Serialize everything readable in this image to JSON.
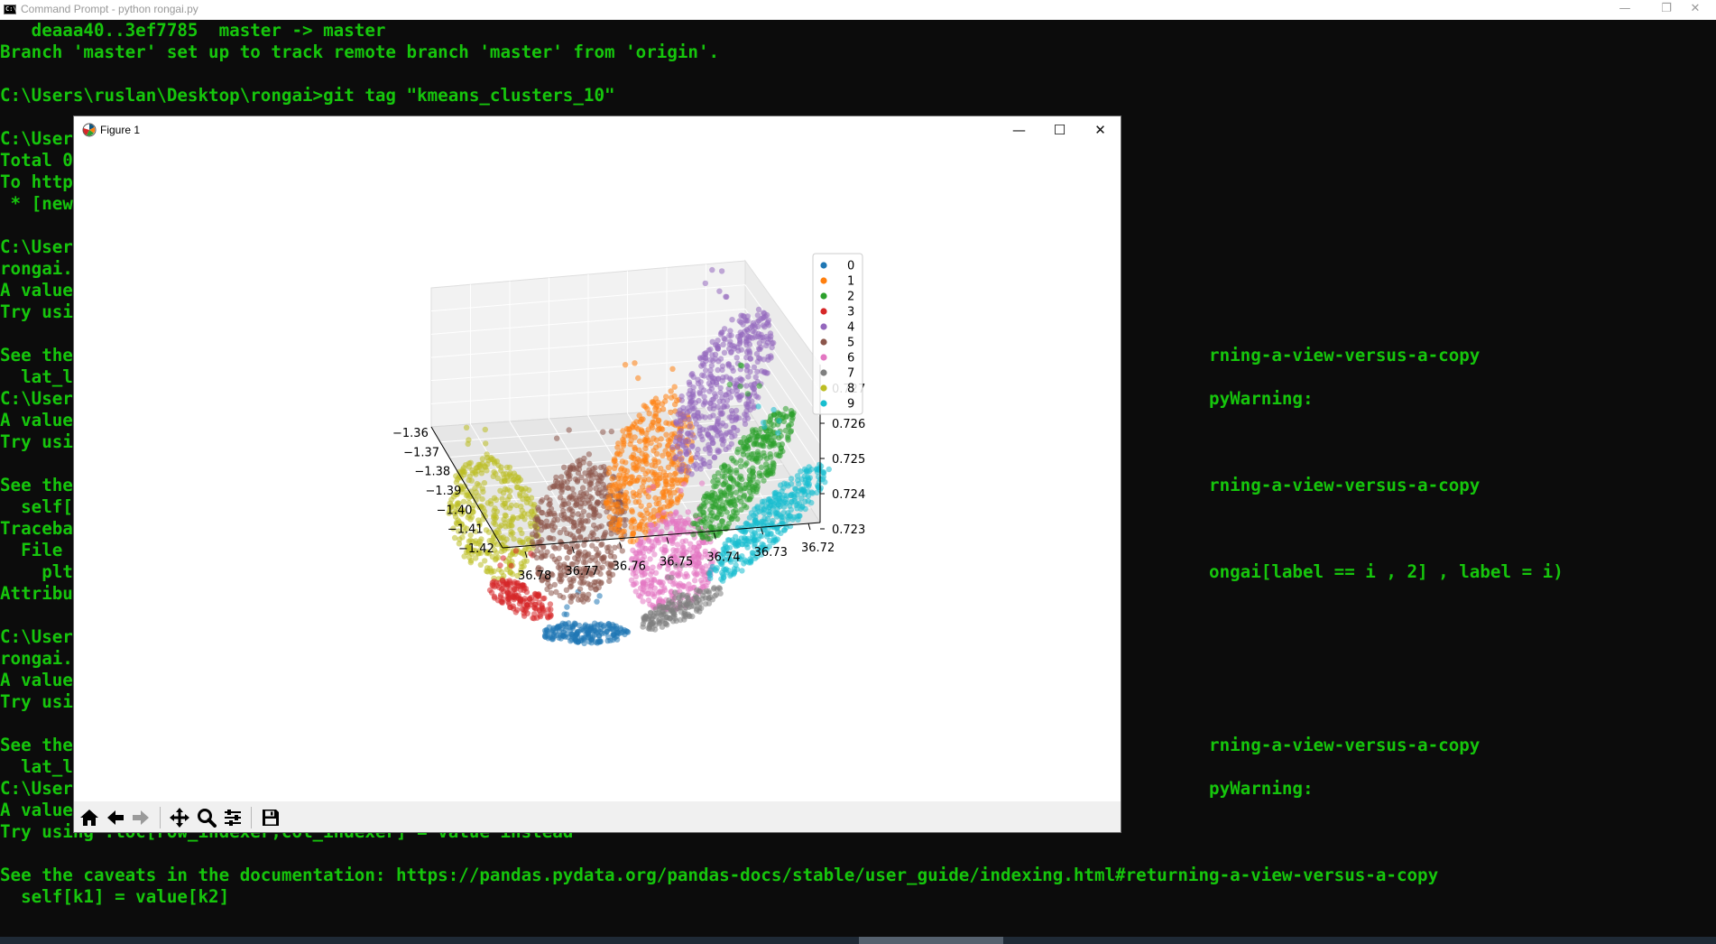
{
  "console_window": {
    "title": "Command Prompt - python  rongai.py",
    "icon": "cmd-icon",
    "controls": {
      "minimize": "—",
      "restore": "❐",
      "close": "✕"
    },
    "lines": [
      "   deaaa40..3ef7785  master -> master",
      "Branch 'master' set up to track remote branch 'master' from 'origin'.",
      "",
      "C:\\Users\\ruslan\\Desktop\\rongai>git tag \"kmeans_clusters_10\"",
      "",
      "C:\\Users",
      "Total 0",
      "To https",
      " * [new",
      "",
      "C:\\Users",
      "rongai.p",
      "A value",
      "Try usin",
      "",
      "See the                                                                                                             rning-a-view-versus-a-copy",
      "  lat_lo",
      "C:\\Users                                                                                                            pyWarning:",
      "A value",
      "Try usin",
      "",
      "See the                                                                                                             rning-a-view-versus-a-copy",
      "  self[k",
      "Traceba",
      "  File '",
      "    plt                                                                                                             ongai[label == i , 2] , label = i)",
      "Attribut",
      "",
      "C:\\Users",
      "rongai.p",
      "A value",
      "Try usin",
      "",
      "See the                                                                                                             rning-a-view-versus-a-copy",
      "  lat_lo",
      "C:\\Users                                                                                                            pyWarning:",
      "A value",
      "Try using .loc[row_indexer,col_indexer] = value instead",
      "",
      "See the caveats in the documentation: https://pandas.pydata.org/pandas-docs/stable/user_guide/indexing.html#returning-a-view-versus-a-copy",
      "  self[k1] = value[k2]"
    ]
  },
  "figure_window": {
    "title": "Figure 1",
    "icon": "matplotlib-icon",
    "controls": {
      "minimize": "—",
      "maximize": "☐",
      "close": "✕"
    },
    "toolbar": [
      {
        "name": "home",
        "icon": "home-icon"
      },
      {
        "name": "back",
        "icon": "arrow-left-icon"
      },
      {
        "name": "forward",
        "icon": "arrow-right-icon"
      },
      {
        "name": "pan",
        "icon": "move-icon"
      },
      {
        "name": "zoom",
        "icon": "magnifier-icon"
      },
      {
        "name": "subplots",
        "icon": "sliders-icon"
      },
      {
        "name": "save",
        "icon": "floppy-disk-icon"
      }
    ]
  },
  "chart_data": {
    "type": "scatter",
    "projection": "3d",
    "title": "",
    "legend": {
      "placement": "top-right",
      "entries": [
        "0",
        "1",
        "2",
        "3",
        "4",
        "5",
        "6",
        "7",
        "8",
        "9"
      ]
    },
    "series": [
      {
        "name": "0",
        "color": "#1f77b4"
      },
      {
        "name": "1",
        "color": "#ff7f0e"
      },
      {
        "name": "2",
        "color": "#2ca02c"
      },
      {
        "name": "3",
        "color": "#d62728"
      },
      {
        "name": "4",
        "color": "#9467bd"
      },
      {
        "name": "5",
        "color": "#8c564b"
      },
      {
        "name": "6",
        "color": "#e377c2"
      },
      {
        "name": "7",
        "color": "#7f7f7f"
      },
      {
        "name": "8",
        "color": "#bcbd22"
      },
      {
        "name": "9",
        "color": "#17becf"
      }
    ],
    "x_axis": {
      "ticks": [
        "36.78",
        "36.77",
        "36.76",
        "36.75",
        "36.74",
        "36.73",
        "36.72"
      ]
    },
    "y_axis": {
      "ticks": [
        "−1.36",
        "−1.37",
        "−1.38",
        "−1.39",
        "−1.40",
        "−1.41",
        "−1.42"
      ]
    },
    "z_axis": {
      "ticks": [
        "0.727",
        "0.726",
        "0.725",
        "0.724",
        "0.723"
      ]
    },
    "grid": true
  }
}
